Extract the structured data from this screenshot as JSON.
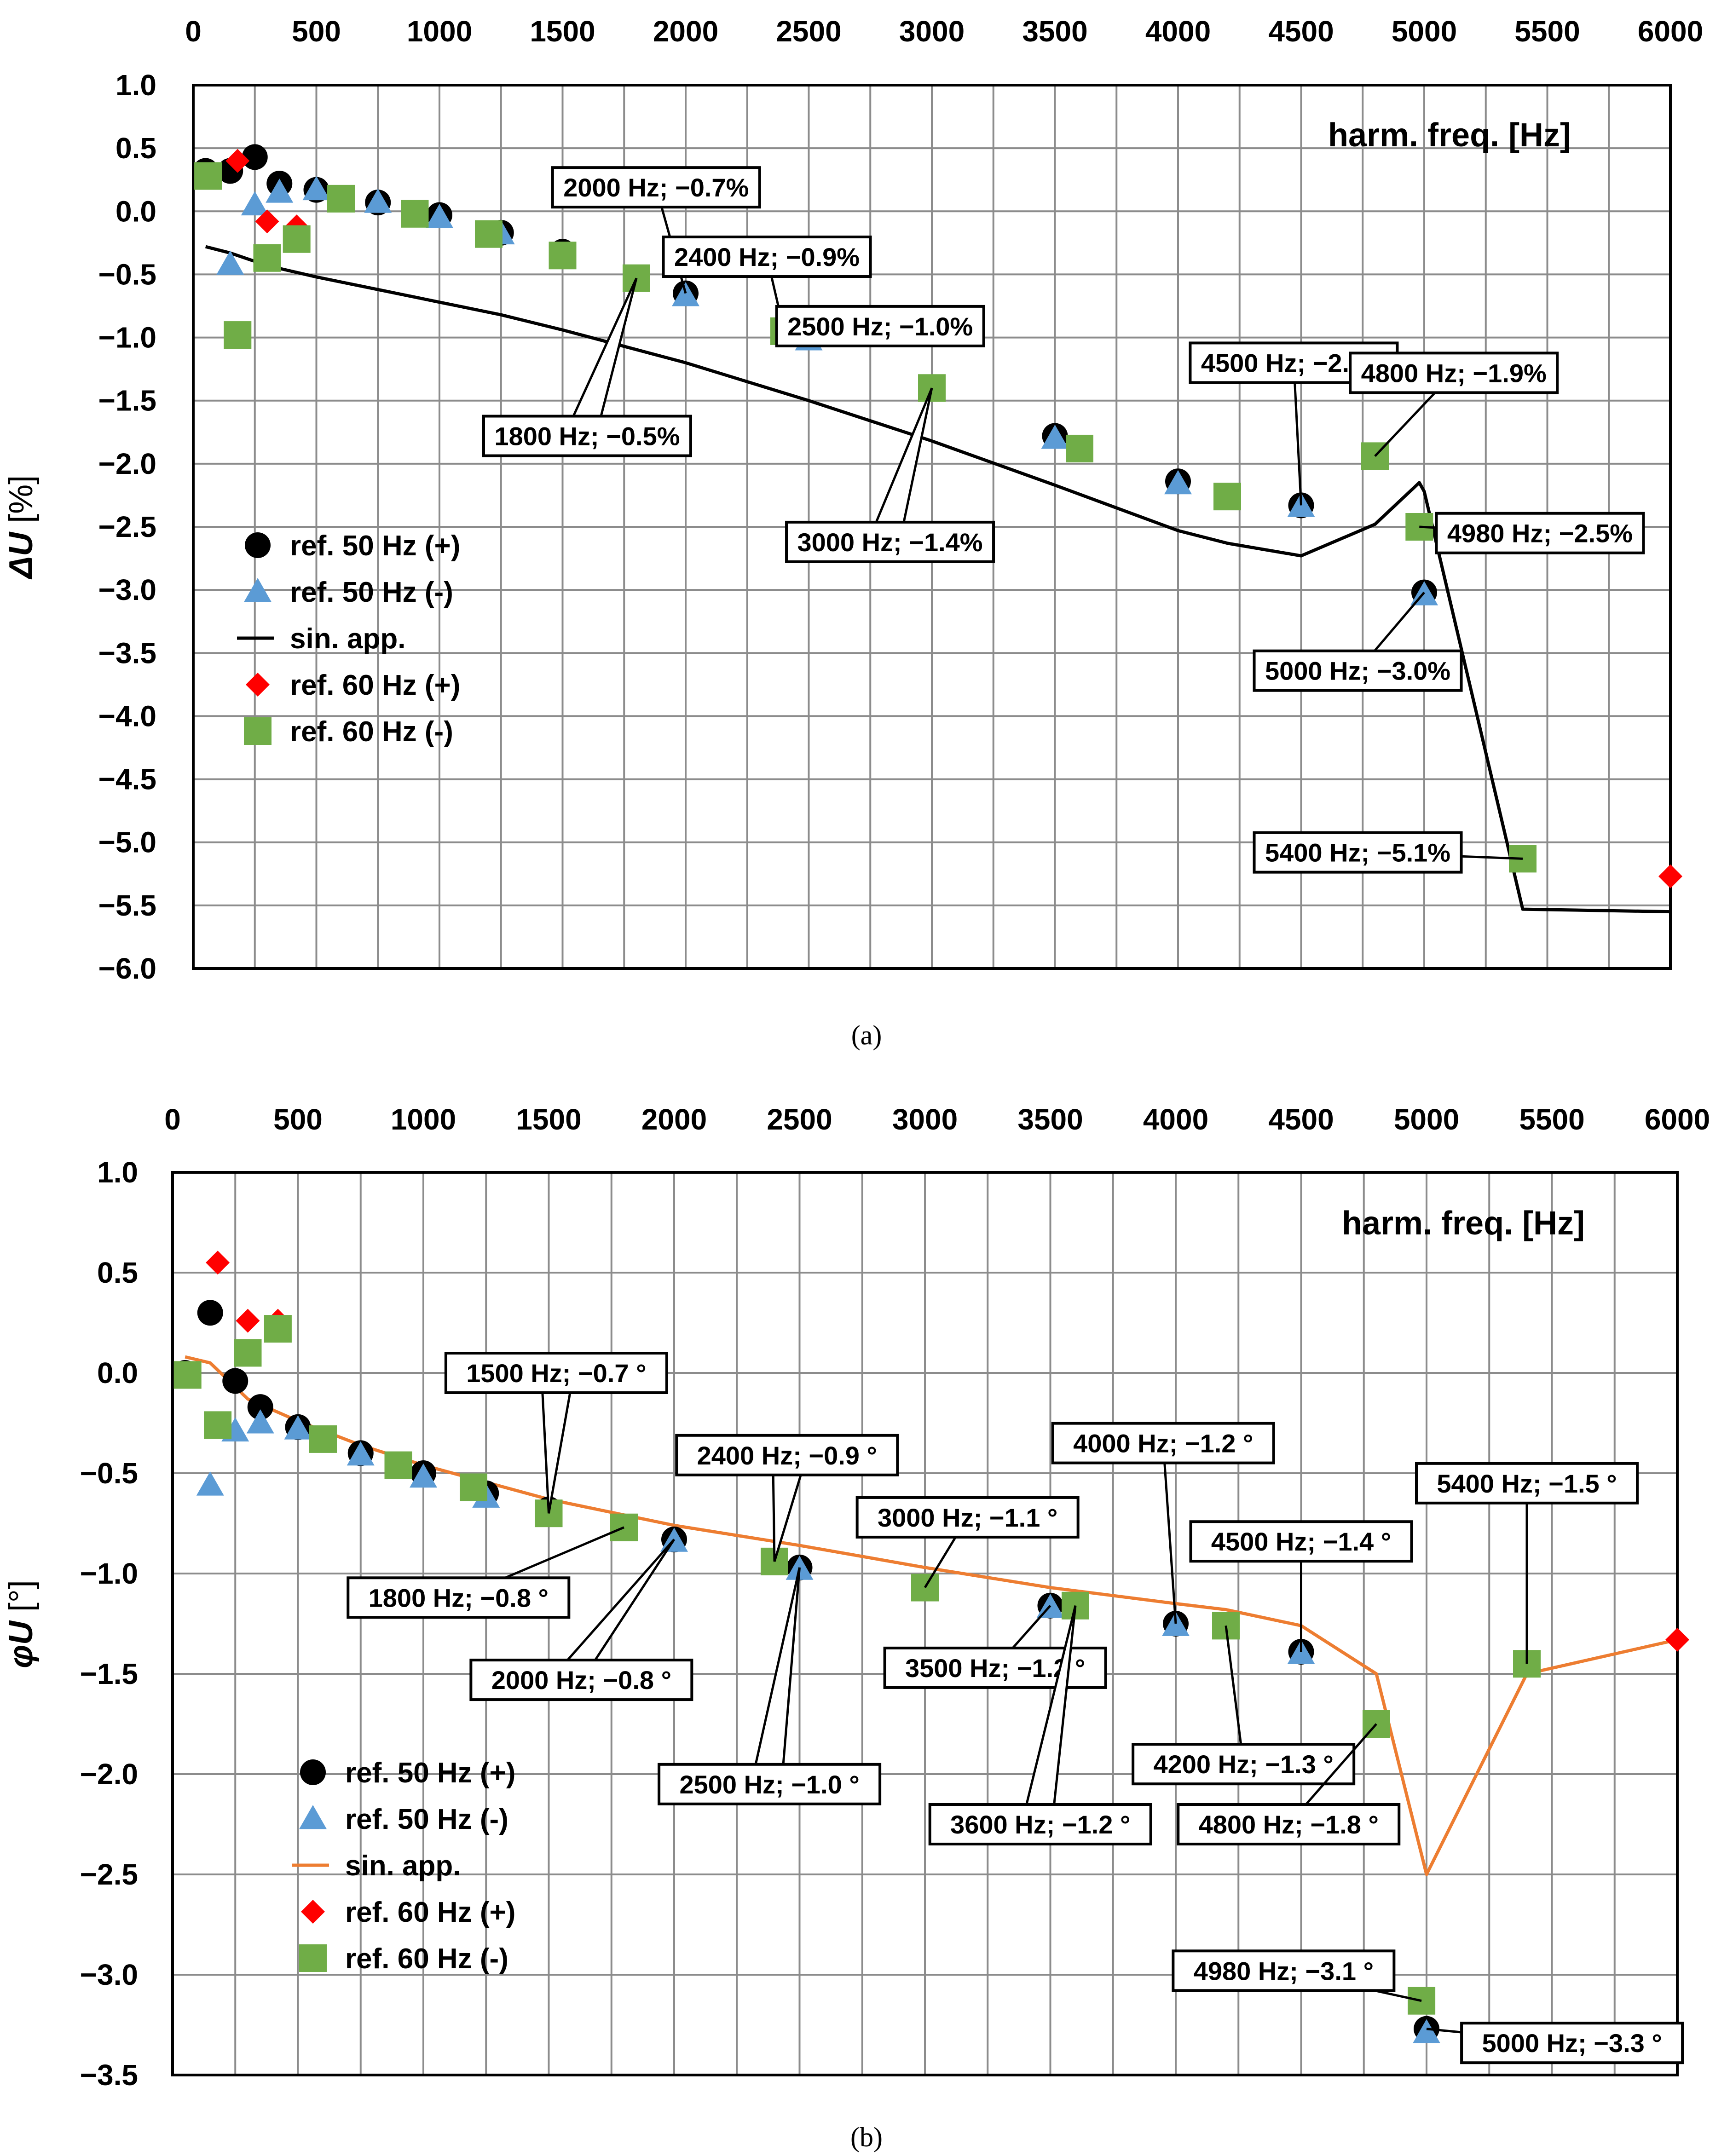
{
  "chart_data": [
    {
      "type": "scatter",
      "sublabel": "(a)",
      "ylabel_symbol": "ΔU",
      "ylabel_unit": " [%]",
      "xlabel": "harm. freq. [Hz]",
      "xlim": [
        0,
        6000
      ],
      "ylim": [
        -6.0,
        1.0
      ],
      "xticks": [
        0,
        500,
        1000,
        1500,
        2000,
        2500,
        3000,
        3500,
        4000,
        4500,
        5000,
        5500,
        6000
      ],
      "xtick_labels": [
        "0",
        "500",
        "1000",
        "1500",
        "2000",
        "2500",
        "3000",
        "3500",
        "4000",
        "4500",
        "5000",
        "5500",
        "6000"
      ],
      "yticks": [
        1.0,
        0.5,
        0.0,
        -0.5,
        -1.0,
        -1.5,
        -2.0,
        -2.5,
        -3.0,
        -3.5,
        -4.0,
        -4.5,
        -5.0,
        -5.5,
        -6.0
      ],
      "ytick_labels": [
        "1.0",
        "0.5",
        "0.0",
        "−0.5",
        "−1.0",
        "−1.5",
        "−2.0",
        "−2.5",
        "−3.0",
        "−3.5",
        "−4.0",
        "−4.5",
        "−5.0",
        "−5.5",
        "−6.0"
      ],
      "grid": true,
      "legend_position": "left-middle",
      "series": [
        {
          "name": "ref. 50 Hz (+)",
          "marker": "circle",
          "color": "#000000",
          "x": [
            50,
            150,
            250,
            350,
            500,
            750,
            1000,
            1250,
            1500,
            2000,
            2500,
            3500,
            4000,
            4500,
            5000
          ],
          "y": [
            0.32,
            0.32,
            0.43,
            0.22,
            0.17,
            0.07,
            -0.03,
            -0.17,
            -0.32,
            -0.65,
            -0.98,
            -1.78,
            -2.14,
            -2.33,
            -3.02
          ]
        },
        {
          "name": "ref. 50 Hz (-)",
          "marker": "triangle",
          "color": "#5B9BD5",
          "x": [
            150,
            250,
            350,
            500,
            750,
            1000,
            1250,
            2000,
            2500,
            3500,
            4000,
            4500,
            5000
          ],
          "y": [
            -0.42,
            0.05,
            0.15,
            0.17,
            0.07,
            -0.05,
            -0.18,
            -0.67,
            -1.02,
            -1.8,
            -2.16,
            -2.34,
            -3.04
          ]
        },
        {
          "name": "sin. app.",
          "marker": "line",
          "color": "#000000",
          "x": [
            50,
            150,
            300,
            500,
            750,
            1000,
            1250,
            1500,
            2000,
            2500,
            3000,
            3500,
            4000,
            4200,
            4500,
            4800,
            4980,
            5000,
            5400,
            6000
          ],
          "y": [
            -0.28,
            -0.33,
            -0.43,
            -0.52,
            -0.62,
            -0.72,
            -0.82,
            -0.94,
            -1.2,
            -1.5,
            -1.82,
            -2.17,
            -2.53,
            -2.63,
            -2.73,
            -2.48,
            -2.15,
            -2.22,
            -5.53,
            -5.55
          ]
        },
        {
          "name": "ref. 60 Hz (+)",
          "marker": "diamond",
          "color": "#FF0000",
          "x": [
            180,
            300,
            420,
            6000
          ],
          "y": [
            0.4,
            -0.08,
            -0.12,
            -5.27
          ]
        },
        {
          "name": "ref. 60 Hz (-)",
          "marker": "square",
          "color": "#70AD47",
          "x": [
            60,
            180,
            300,
            420,
            600,
            900,
            1200,
            1500,
            1800,
            2400,
            3000,
            3600,
            4200,
            4800,
            4980,
            5400
          ],
          "y": [
            0.28,
            -0.98,
            -0.37,
            -0.22,
            0.1,
            -0.02,
            -0.18,
            -0.35,
            -0.53,
            -0.95,
            -1.4,
            -1.88,
            -2.26,
            -1.94,
            -2.5,
            -5.13
          ]
        }
      ],
      "annotations": [
        {
          "text": "2000 Hz; −0.7%",
          "x": 2000,
          "y": -0.65,
          "box_x": 1880,
          "box_y": 0.19,
          "shape": "line"
        },
        {
          "text": "2400 Hz; −0.9%",
          "x": 2400,
          "y": -0.95,
          "box_x": 2330,
          "box_y": -0.36,
          "shape": "line"
        },
        {
          "text": "2500 Hz; −1.0%",
          "x": 2500,
          "y": -0.98,
          "box_x": 2790,
          "box_y": -0.91,
          "shape": "line"
        },
        {
          "text": "1800 Hz; −0.5%",
          "x": 1800,
          "y": -0.53,
          "box_x": 1600,
          "box_y": -1.78,
          "shape": "callout"
        },
        {
          "text": "3000 Hz; −1.4%",
          "x": 3000,
          "y": -1.4,
          "box_x": 2830,
          "box_y": -2.62,
          "shape": "callout"
        },
        {
          "text": "4500 Hz; −2.3%",
          "x": 4500,
          "y": -2.33,
          "box_x": 4470,
          "box_y": -1.2,
          "shape": "line"
        },
        {
          "text": "4800 Hz; −1.9%",
          "x": 4800,
          "y": -1.94,
          "box_x": 5120,
          "box_y": -1.28,
          "shape": "line"
        },
        {
          "text": "4980 Hz; −2.5%",
          "x": 4980,
          "y": -2.5,
          "box_x": 5470,
          "box_y": -2.55,
          "shape": "line"
        },
        {
          "text": "5000 Hz; −3.0%",
          "x": 5000,
          "y": -3.02,
          "box_x": 4730,
          "box_y": -3.64,
          "shape": "line"
        },
        {
          "text": "5400 Hz; −5.1%",
          "x": 5400,
          "y": -5.13,
          "box_x": 4730,
          "box_y": -5.08,
          "shape": "line"
        }
      ]
    },
    {
      "type": "scatter",
      "sublabel": "(b)",
      "ylabel_symbol": "φU",
      "ylabel_unit": " [°]",
      "xlabel": "harm. freq. [Hz]",
      "xlim": [
        0,
        6000
      ],
      "ylim": [
        -3.5,
        1.0
      ],
      "xticks": [
        0,
        500,
        1000,
        1500,
        2000,
        2500,
        3000,
        3500,
        4000,
        4500,
        5000,
        5500,
        6000
      ],
      "xtick_labels": [
        "0",
        "500",
        "1000",
        "1500",
        "2000",
        "2500",
        "3000",
        "3500",
        "4000",
        "4500",
        "5000",
        "5500",
        "6000"
      ],
      "yticks": [
        1.0,
        0.5,
        0.0,
        -0.5,
        -1.0,
        -1.5,
        -2.0,
        -2.5,
        -3.0,
        -3.5
      ],
      "ytick_labels": [
        "1.0",
        "0.5",
        "0.0",
        "−0.5",
        "−1.0",
        "−1.5",
        "−2.0",
        "−2.5",
        "−3.0",
        "−3.5"
      ],
      "grid": true,
      "legend_position": "left-bottom",
      "series": [
        {
          "name": "ref. 50 Hz (+)",
          "marker": "circle",
          "color": "#000000",
          "x": [
            50,
            150,
            250,
            350,
            500,
            750,
            1000,
            1250,
            1500,
            2000,
            2500,
            3500,
            4000,
            4500,
            5000
          ],
          "y": [
            0.0,
            0.3,
            -0.04,
            -0.17,
            -0.27,
            -0.4,
            -0.5,
            -0.6,
            -0.68,
            -0.83,
            -0.97,
            -1.16,
            -1.25,
            -1.39,
            -3.27
          ]
        },
        {
          "name": "ref. 50 Hz (-)",
          "marker": "triangle",
          "color": "#5B9BD5",
          "x": [
            150,
            250,
            350,
            500,
            750,
            1000,
            1250,
            2000,
            2500,
            3500,
            4000,
            4500,
            5000
          ],
          "y": [
            -0.56,
            -0.29,
            -0.25,
            -0.28,
            -0.41,
            -0.52,
            -0.62,
            -0.84,
            -0.98,
            -1.17,
            -1.26,
            -1.4,
            -3.29
          ]
        },
        {
          "name": "sin. app.",
          "marker": "line",
          "color": "#ED7D31",
          "x": [
            50,
            150,
            300,
            500,
            750,
            1000,
            1500,
            2000,
            2500,
            3000,
            3500,
            4000,
            4200,
            4500,
            4800,
            5000,
            5400,
            6000
          ],
          "y": [
            0.08,
            0.05,
            -0.13,
            -0.24,
            -0.36,
            -0.46,
            -0.63,
            -0.76,
            -0.86,
            -0.97,
            -1.07,
            -1.15,
            -1.18,
            -1.26,
            -1.5,
            -2.5,
            -1.5,
            -1.33
          ]
        },
        {
          "name": "ref. 60 Hz (+)",
          "marker": "diamond",
          "color": "#FF0000",
          "x": [
            180,
            300,
            420,
            6000
          ],
          "y": [
            0.55,
            0.26,
            0.26,
            -1.33
          ]
        },
        {
          "name": "ref. 60 Hz (-)",
          "marker": "square",
          "color": "#70AD47",
          "x": [
            60,
            180,
            300,
            420,
            600,
            900,
            1200,
            1500,
            1800,
            2400,
            3000,
            3600,
            4200,
            4800,
            4980,
            5400
          ],
          "y": [
            -0.01,
            -0.26,
            0.1,
            0.22,
            -0.33,
            -0.46,
            -0.57,
            -0.7,
            -0.77,
            -0.94,
            -1.07,
            -1.16,
            -1.26,
            -1.75,
            -3.13,
            -1.45
          ]
        }
      ],
      "annotations": [
        {
          "text": "1500 Hz; −0.7 °",
          "x": 1500,
          "y": -0.7,
          "box_x": 1530,
          "box_y": 0.0,
          "shape": "callout"
        },
        {
          "text": "1800 Hz; −0.8 °",
          "x": 1800,
          "y": -0.77,
          "box_x": 1140,
          "box_y": -1.12,
          "shape": "line"
        },
        {
          "text": "2000 Hz; −0.8 °",
          "x": 2000,
          "y": -0.83,
          "box_x": 1630,
          "box_y": -1.53,
          "shape": "callout"
        },
        {
          "text": "2400 Hz; −0.9 °",
          "x": 2400,
          "y": -0.94,
          "box_x": 2450,
          "box_y": -0.41,
          "shape": "callout"
        },
        {
          "text": "2500 Hz; −1.0 °",
          "x": 2500,
          "y": -0.97,
          "box_x": 2380,
          "box_y": -2.05,
          "shape": "callout"
        },
        {
          "text": "3000 Hz; −1.1 °",
          "x": 3000,
          "y": -1.07,
          "box_x": 3170,
          "box_y": -0.72,
          "shape": "line"
        },
        {
          "text": "3500 Hz; −1.2 °",
          "x": 3500,
          "y": -1.16,
          "box_x": 3280,
          "box_y": -1.47,
          "shape": "line"
        },
        {
          "text": "3600 Hz; −1.2 °",
          "x": 3600,
          "y": -1.16,
          "box_x": 3460,
          "box_y": -2.25,
          "shape": "callout"
        },
        {
          "text": "4000 Hz; −1.2 °",
          "x": 4000,
          "y": -1.25,
          "box_x": 3950,
          "box_y": -0.35,
          "shape": "line"
        },
        {
          "text": "4200 Hz; −1.3 °",
          "x": 4200,
          "y": -1.26,
          "box_x": 4270,
          "box_y": -1.95,
          "shape": "line"
        },
        {
          "text": "4500 Hz; −1.4 °",
          "x": 4500,
          "y": -1.39,
          "box_x": 4500,
          "box_y": -0.84,
          "shape": "line"
        },
        {
          "text": "4800 Hz; −1.8 °",
          "x": 4800,
          "y": -1.75,
          "box_x": 4450,
          "box_y": -2.25,
          "shape": "line"
        },
        {
          "text": "5400 Hz; −1.5 °",
          "x": 5400,
          "y": -1.45,
          "box_x": 5400,
          "box_y": -0.55,
          "shape": "line"
        },
        {
          "text": "4980 Hz; −3.1 °",
          "x": 4980,
          "y": -3.13,
          "box_x": 4430,
          "box_y": -2.98,
          "shape": "line"
        },
        {
          "text": "5000 Hz; −3.3 °",
          "x": 5000,
          "y": -3.27,
          "box_x": 5580,
          "box_y": -3.34,
          "shape": "line"
        }
      ]
    }
  ]
}
